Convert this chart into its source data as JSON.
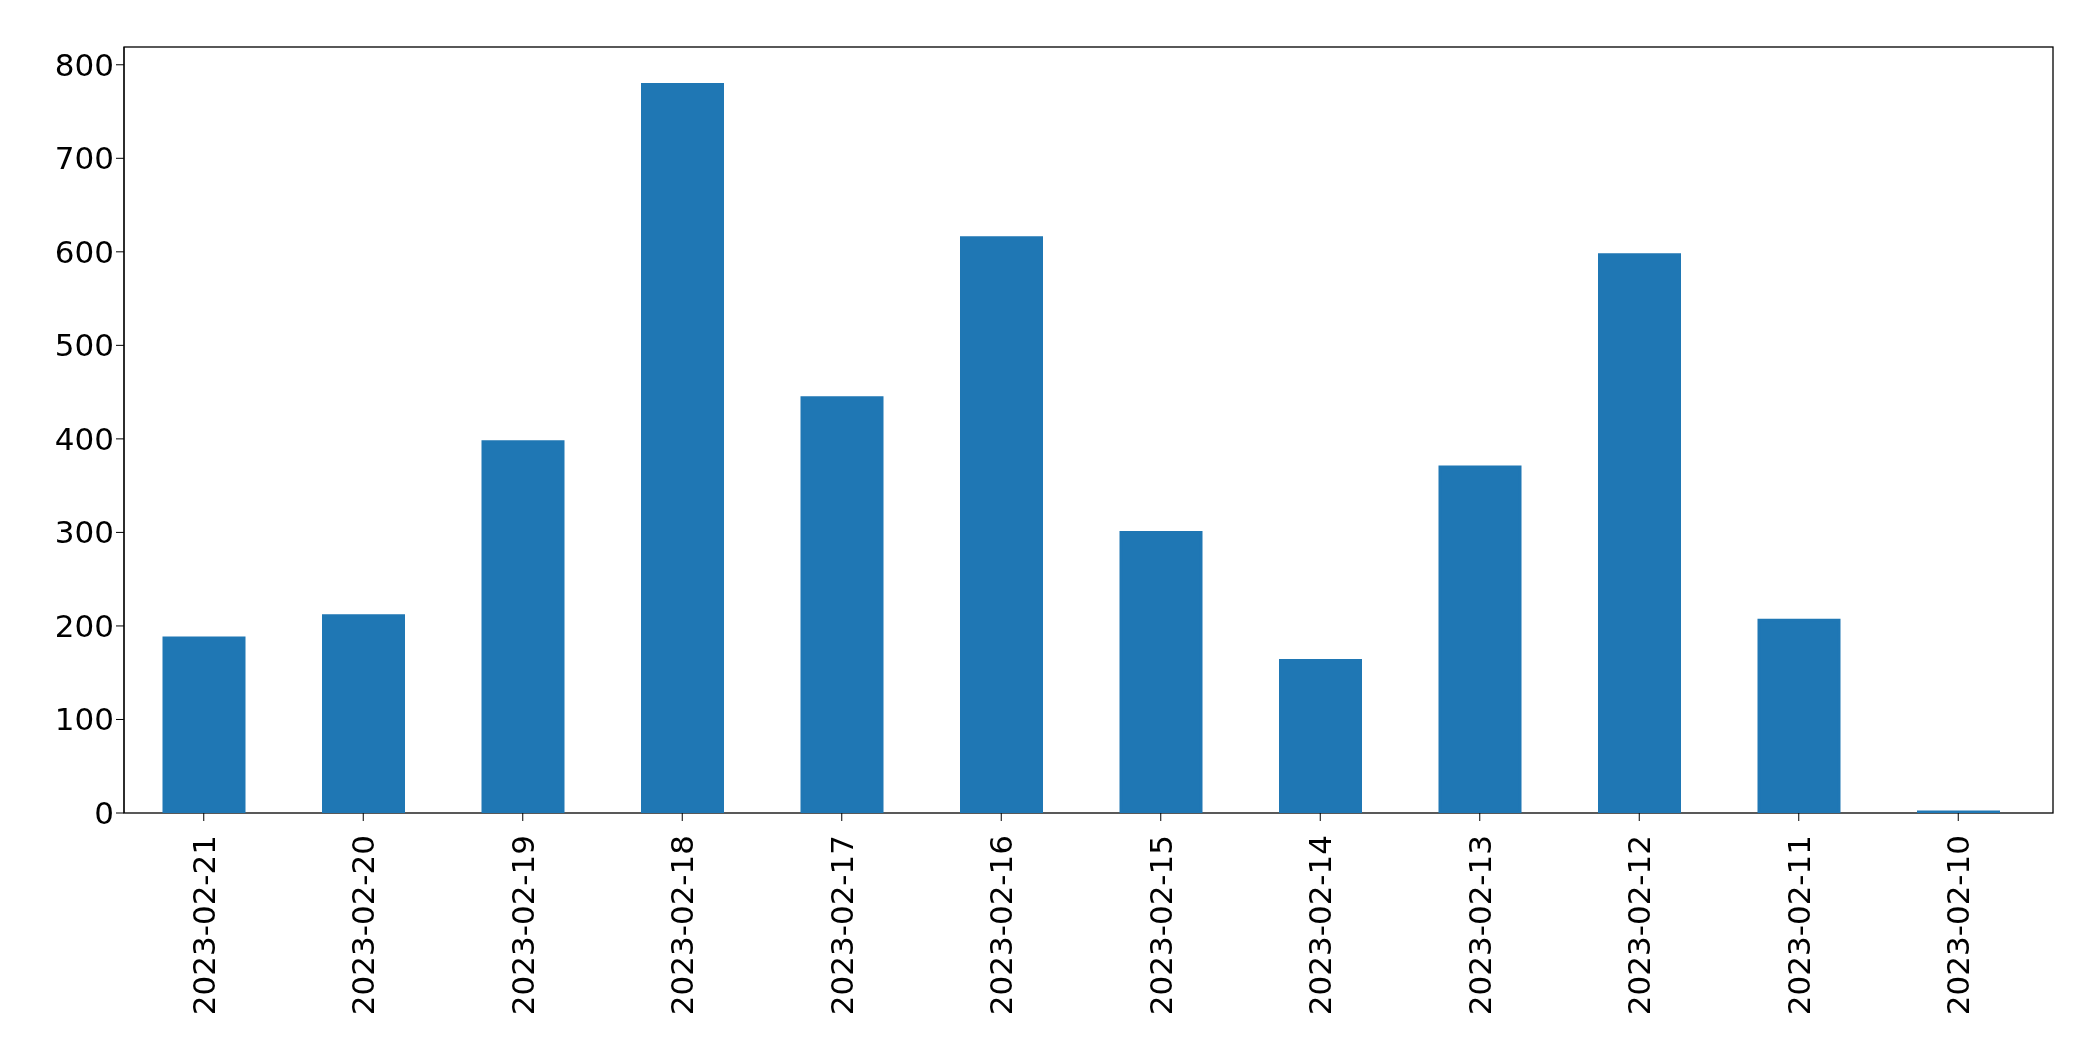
{
  "chart_data": {
    "type": "bar",
    "categories": [
      "2023-02-21",
      "2023-02-20",
      "2023-02-19",
      "2023-02-18",
      "2023-02-17",
      "2023-02-16",
      "2023-02-15",
      "2023-02-14",
      "2023-02-13",
      "2023-02-12",
      "2023-02-11",
      "2023-02-10"
    ],
    "values": [
      187,
      211,
      397,
      779,
      444,
      615,
      300,
      163,
      370,
      597,
      206,
      1
    ],
    "color": "#1f77b4",
    "ylim": [
      0,
      819
    ],
    "yticks": [
      0,
      100,
      200,
      300,
      400,
      500,
      600,
      700,
      800
    ],
    "grid": false,
    "legend": false
  }
}
